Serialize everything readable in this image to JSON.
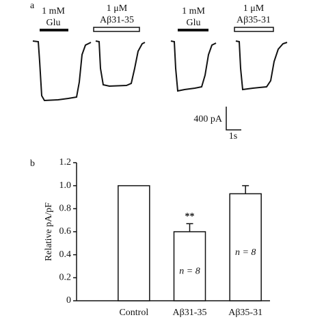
{
  "panel_a": {
    "label": "a",
    "traces": [
      {
        "concentration": "1 mM",
        "drug": "Glu"
      },
      {
        "concentration": "1 μM",
        "drug": "Aβ31-35"
      },
      {
        "concentration": "1 mM",
        "drug": "Glu"
      },
      {
        "concentration": "1 μM",
        "drug": "Aβ35-31"
      }
    ],
    "scale_current": "400 pA",
    "scale_time": "1s"
  },
  "chart_data": {
    "type": "bar",
    "panel_label": "b",
    "ylabel": "Relative pA/pF",
    "categories": [
      "Control",
      "Aβ31-35",
      "Aβ35-31"
    ],
    "values": [
      1.0,
      0.6,
      0.93
    ],
    "errors": [
      null,
      0.07,
      0.07
    ],
    "significance": [
      null,
      "**",
      null
    ],
    "n_labels": [
      null,
      "n = 8",
      "n = 8"
    ],
    "color": "#ffffff",
    "ylim": [
      0,
      1.2
    ],
    "yticks": [
      0,
      0.2,
      0.4,
      0.6,
      0.8,
      {
        "value": 1,
        "label": "1.0"
      },
      1.2
    ]
  }
}
